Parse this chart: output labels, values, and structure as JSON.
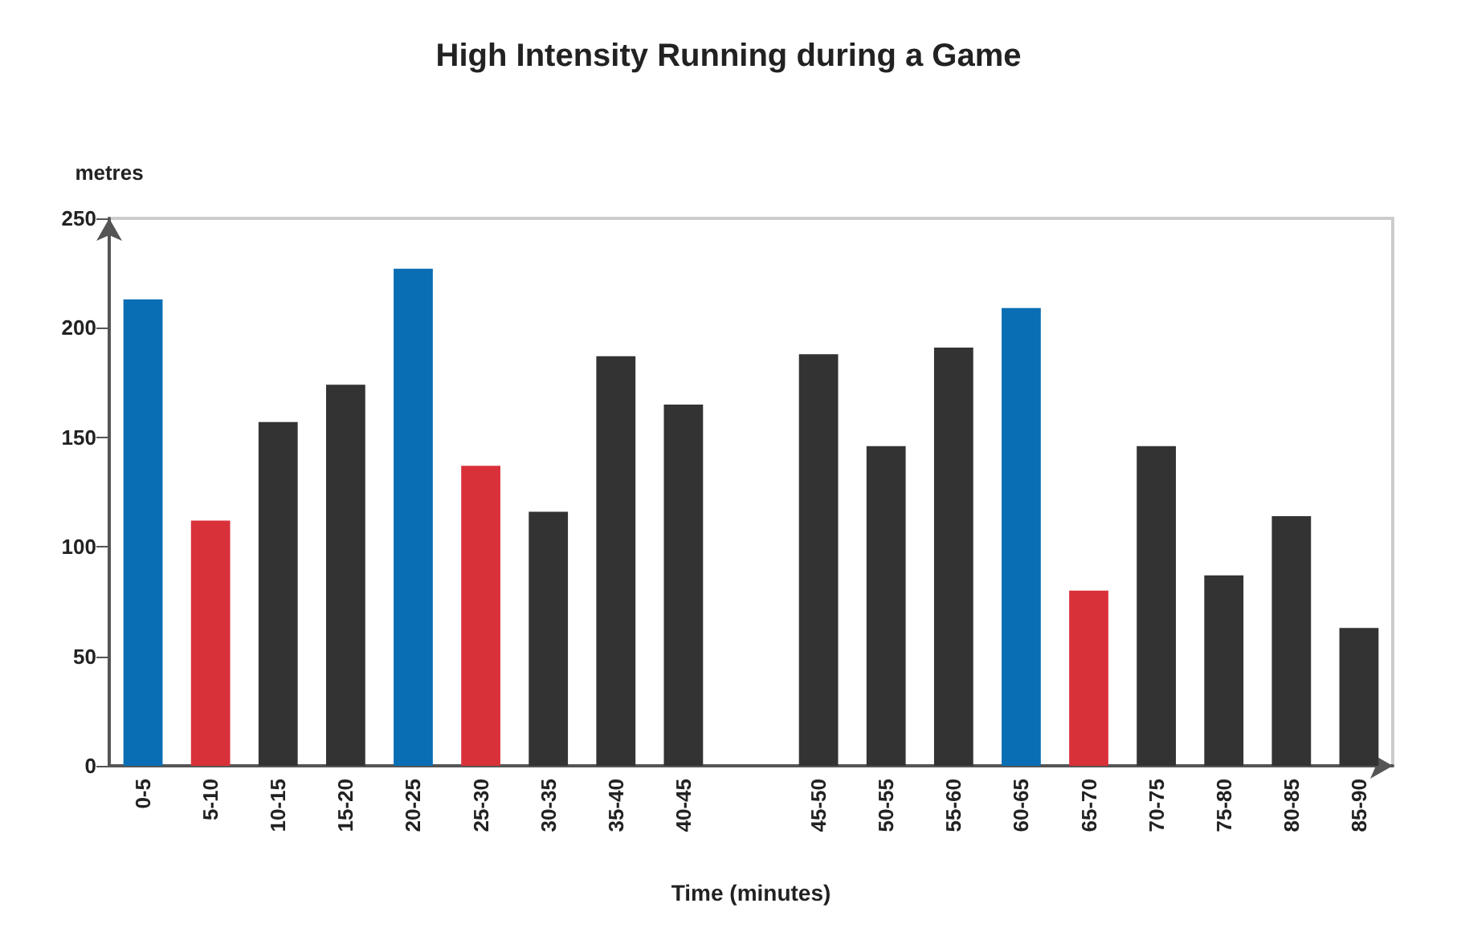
{
  "chart_data": {
    "type": "bar",
    "title": "High Intensity Running during a Game",
    "xlabel": "Time (minutes)",
    "ylabel": "metres",
    "categories": [
      "0-5",
      "5-10",
      "10-15",
      "15-20",
      "20-25",
      "25-30",
      "30-35",
      "35-40",
      "40-45",
      null,
      "45-50",
      "50-55",
      "55-60",
      "60-65",
      "65-70",
      "70-75",
      "75-80",
      "80-85",
      "85-90"
    ],
    "values": [
      213,
      112,
      157,
      174,
      227,
      137,
      116,
      187,
      165,
      null,
      188,
      146,
      191,
      209,
      80,
      146,
      87,
      114,
      63
    ],
    "colors": [
      "#0a6eb4",
      "#d9313a",
      "#333333",
      "#333333",
      "#0a6eb4",
      "#d9313a",
      "#333333",
      "#333333",
      "#333333",
      "#333333",
      "#333333",
      "#333333",
      "#333333",
      "#0a6eb4",
      "#d9313a",
      "#333333",
      "#333333",
      "#333333",
      "#333333"
    ],
    "ylim": [
      0,
      250
    ],
    "yticks": [
      0,
      50,
      100,
      150,
      200,
      250
    ]
  }
}
